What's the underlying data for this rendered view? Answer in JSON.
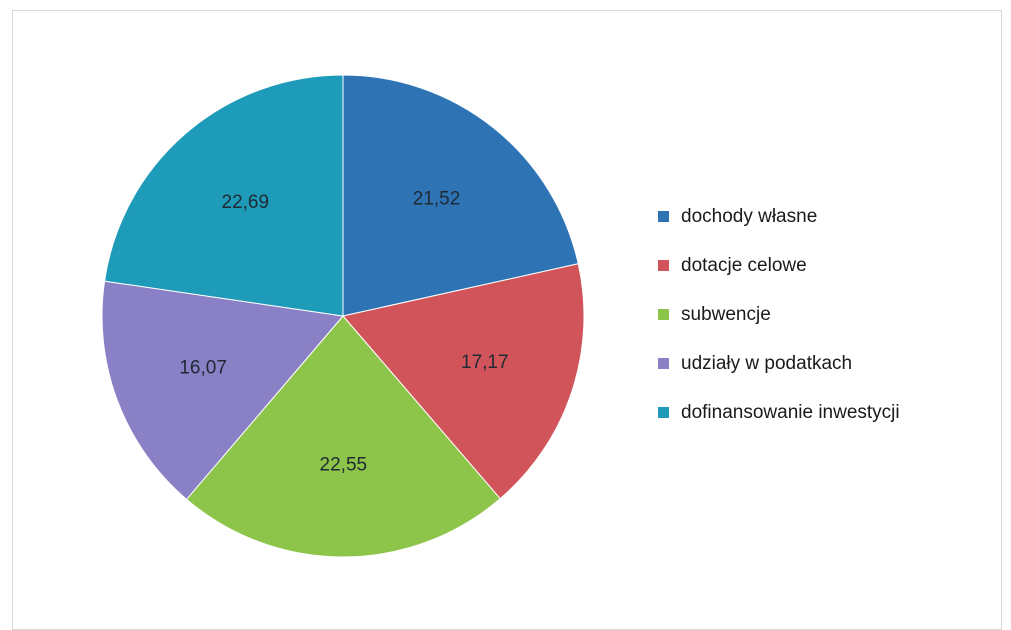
{
  "chart_data": {
    "type": "pie",
    "title": "",
    "start_angle_deg": 0,
    "direction": "clockwise",
    "legend_position": "right",
    "slices": [
      {
        "label": "dochody własne",
        "value": 21.52,
        "display": "21,52",
        "color": "#2e74b5"
      },
      {
        "label": "dotacje celowe",
        "value": 17.17,
        "display": "17,17",
        "color": "#d0545a"
      },
      {
        "label": "subwencje",
        "value": 22.55,
        "display": "22,55",
        "color": "#8dc44a"
      },
      {
        "label": "udziały w podatkach",
        "value": 16.07,
        "display": "16,07",
        "color": "#8a80c6"
      },
      {
        "label": "dofinansowanie inwestycji",
        "value": 22.69,
        "display": "22,69",
        "color": "#1e9bb8"
      }
    ]
  }
}
